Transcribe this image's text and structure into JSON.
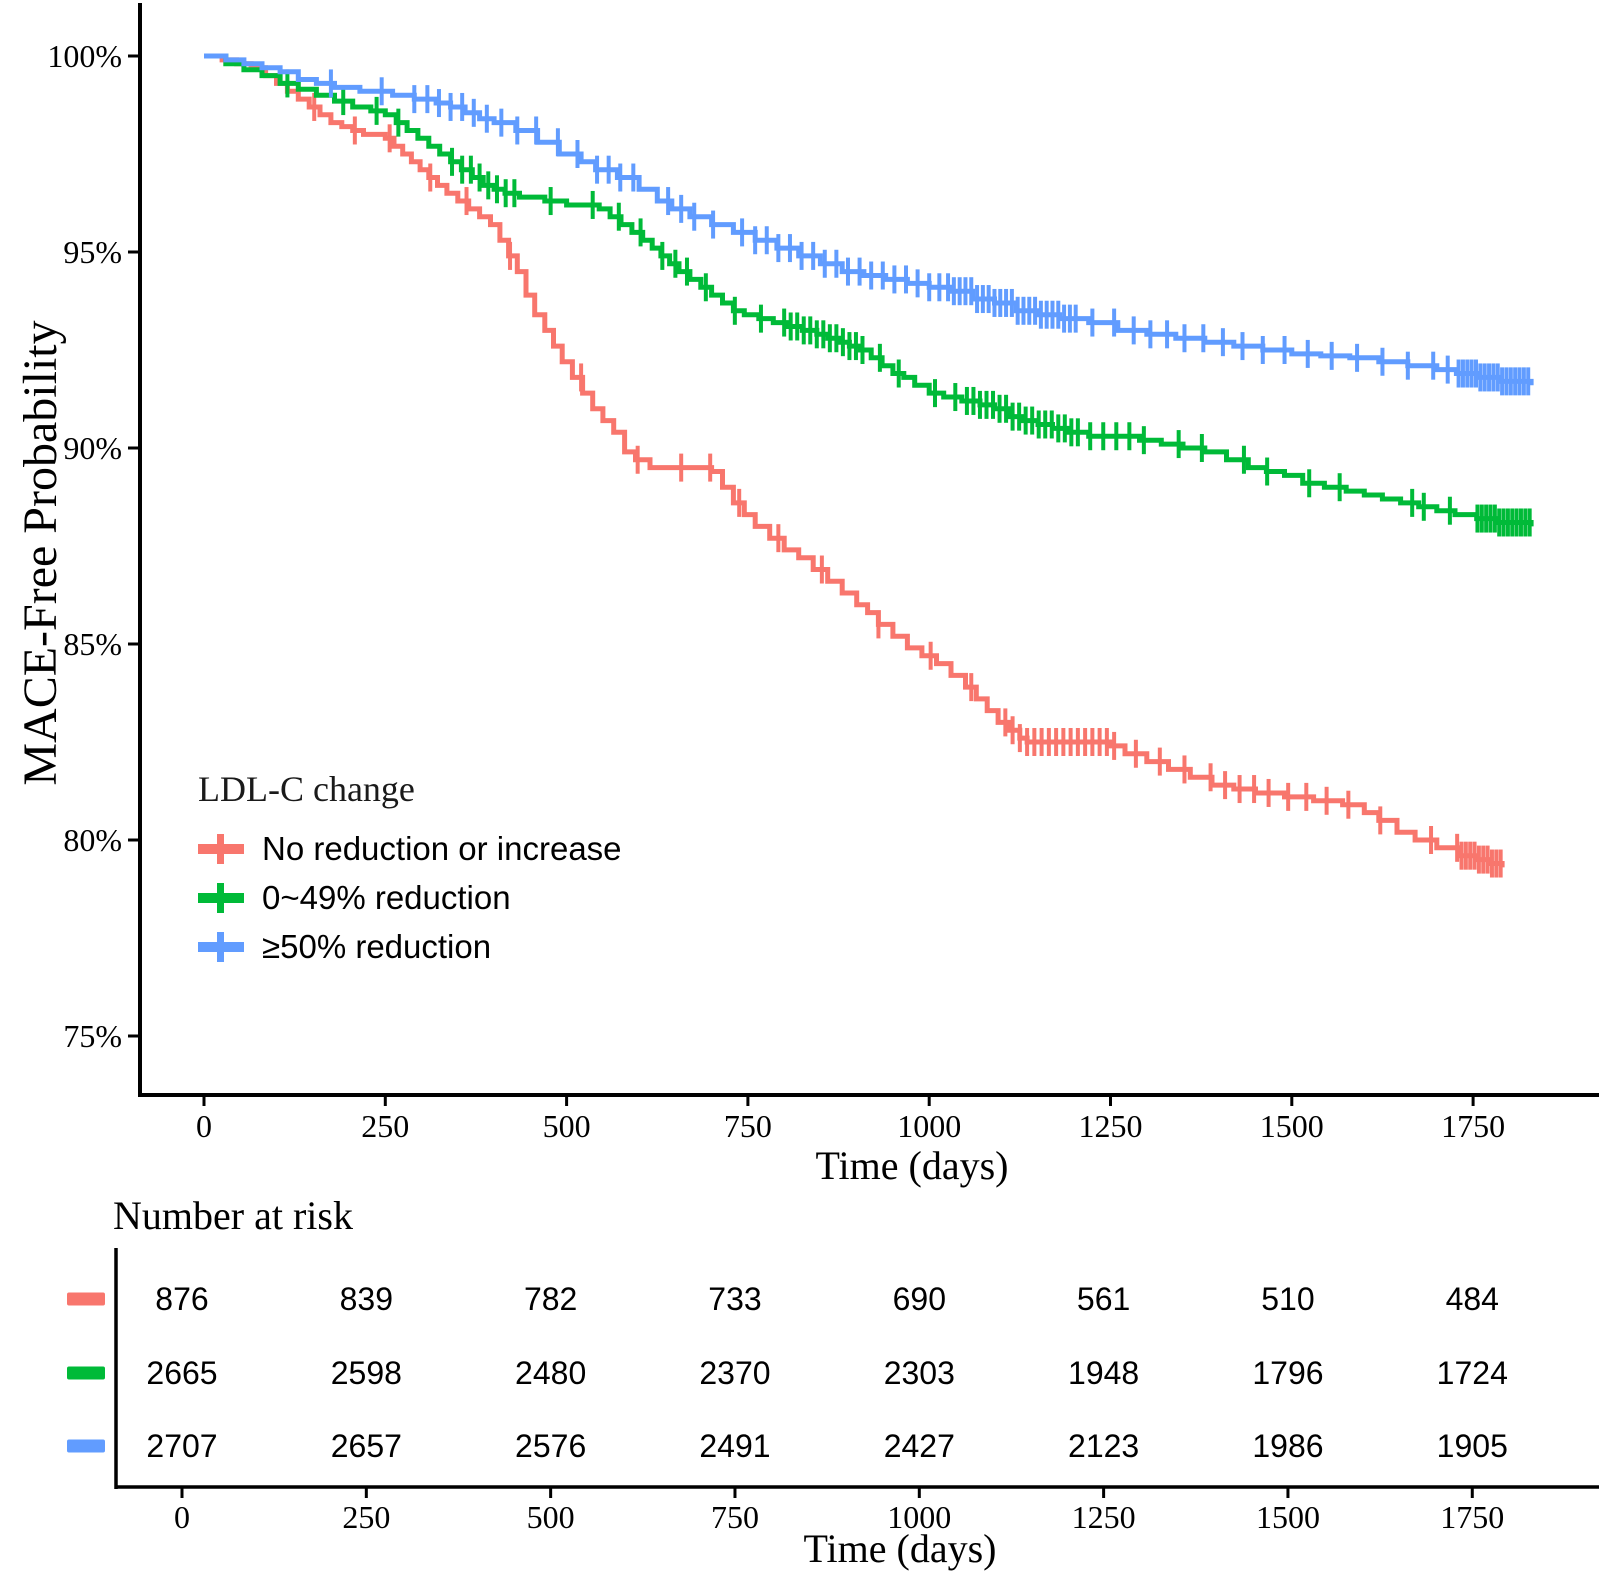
{
  "chart_data": {
    "type": "line",
    "subtype": "kaplan-meier-step-survival",
    "title": "",
    "ylabel": "MACE-Free Probability",
    "xlabel": "Time (days)",
    "x_ticks": [
      0,
      250,
      500,
      750,
      1000,
      1250,
      1500,
      1750
    ],
    "y_ticks": [
      {
        "value": 100,
        "label": "100%"
      },
      {
        "value": 95,
        "label": "95%"
      },
      {
        "value": 90,
        "label": "90%"
      },
      {
        "value": 85,
        "label": "85%"
      },
      {
        "value": 80,
        "label": "80%"
      },
      {
        "value": 75,
        "label": "75%"
      }
    ],
    "xlim": [
      0,
      1830
    ],
    "ylim_pct": [
      73.5,
      101
    ],
    "grid": false,
    "legend": {
      "title": "LDL-C change",
      "position": "inside-left"
    },
    "series": [
      {
        "name": "No reduction or increase",
        "color": "#F8766D",
        "points": [
          [
            0,
            100
          ],
          [
            25,
            99.9
          ],
          [
            45,
            99.8
          ],
          [
            65,
            99.7
          ],
          [
            85,
            99.5
          ],
          [
            100,
            99.3
          ],
          [
            115,
            99.1
          ],
          [
            130,
            98.9
          ],
          [
            145,
            98.7
          ],
          [
            160,
            98.5
          ],
          [
            175,
            98.3
          ],
          [
            190,
            98.2
          ],
          [
            205,
            98.1
          ],
          [
            220,
            98.0
          ],
          [
            250,
            97.9
          ],
          [
            262,
            97.7
          ],
          [
            274,
            97.5
          ],
          [
            286,
            97.3
          ],
          [
            298,
            97.1
          ],
          [
            310,
            96.9
          ],
          [
            322,
            96.7
          ],
          [
            335,
            96.5
          ],
          [
            350,
            96.3
          ],
          [
            365,
            96.1
          ],
          [
            380,
            95.9
          ],
          [
            395,
            95.7
          ],
          [
            408,
            95.3
          ],
          [
            420,
            94.9
          ],
          [
            432,
            94.5
          ],
          [
            444,
            93.9
          ],
          [
            456,
            93.4
          ],
          [
            470,
            93.0
          ],
          [
            482,
            92.6
          ],
          [
            494,
            92.2
          ],
          [
            508,
            91.8
          ],
          [
            522,
            91.4
          ],
          [
            536,
            91.0
          ],
          [
            550,
            90.7
          ],
          [
            565,
            90.4
          ],
          [
            580,
            89.9
          ],
          [
            595,
            89.7
          ],
          [
            615,
            89.5
          ],
          [
            700,
            89.4
          ],
          [
            715,
            89.0
          ],
          [
            730,
            88.6
          ],
          [
            745,
            88.3
          ],
          [
            760,
            88.0
          ],
          [
            780,
            87.7
          ],
          [
            800,
            87.4
          ],
          [
            820,
            87.2
          ],
          [
            840,
            86.9
          ],
          [
            860,
            86.6
          ],
          [
            880,
            86.3
          ],
          [
            900,
            86.0
          ],
          [
            915,
            85.8
          ],
          [
            930,
            85.5
          ],
          [
            950,
            85.2
          ],
          [
            970,
            84.9
          ],
          [
            990,
            84.7
          ],
          [
            1010,
            84.5
          ],
          [
            1030,
            84.2
          ],
          [
            1050,
            83.9
          ],
          [
            1065,
            83.6
          ],
          [
            1080,
            83.3
          ],
          [
            1095,
            83.0
          ],
          [
            1110,
            82.8
          ],
          [
            1125,
            82.6
          ],
          [
            1135,
            82.5
          ],
          [
            1250,
            82.4
          ],
          [
            1270,
            82.2
          ],
          [
            1300,
            82.0
          ],
          [
            1330,
            81.8
          ],
          [
            1360,
            81.6
          ],
          [
            1390,
            81.4
          ],
          [
            1420,
            81.3
          ],
          [
            1450,
            81.2
          ],
          [
            1490,
            81.1
          ],
          [
            1530,
            81.0
          ],
          [
            1570,
            80.9
          ],
          [
            1600,
            80.7
          ],
          [
            1620,
            80.5
          ],
          [
            1645,
            80.2
          ],
          [
            1670,
            80.0
          ],
          [
            1700,
            79.8
          ],
          [
            1730,
            79.6
          ],
          [
            1755,
            79.5
          ],
          [
            1775,
            79.4
          ],
          [
            1790,
            79.3
          ]
        ],
        "censor_days": [
          152,
          208,
          256,
          312,
          362,
          422,
          520,
          598,
          658,
          698,
          738,
          792,
          852,
          930,
          1002,
          1058,
          1105,
          1115,
          1125,
          1135,
          1145,
          1155,
          1165,
          1175,
          1185,
          1195,
          1205,
          1215,
          1225,
          1235,
          1245,
          1255,
          1285,
          1318,
          1352,
          1388,
          1408,
          1428,
          1448,
          1468,
          1495,
          1520,
          1548,
          1578,
          1622,
          1692,
          1728,
          1734,
          1740,
          1746,
          1752,
          1758,
          1764,
          1770,
          1776,
          1782,
          1788
        ]
      },
      {
        "name": "0~49% reduction",
        "color": "#00BA38",
        "points": [
          [
            0,
            100
          ],
          [
            30,
            99.8
          ],
          [
            55,
            99.65
          ],
          [
            80,
            99.5
          ],
          [
            105,
            99.3
          ],
          [
            130,
            99.15
          ],
          [
            155,
            99.0
          ],
          [
            180,
            98.85
          ],
          [
            205,
            98.7
          ],
          [
            230,
            98.6
          ],
          [
            250,
            98.5
          ],
          [
            265,
            98.3
          ],
          [
            280,
            98.1
          ],
          [
            295,
            97.9
          ],
          [
            310,
            97.7
          ],
          [
            325,
            97.5
          ],
          [
            340,
            97.3
          ],
          [
            355,
            97.1
          ],
          [
            370,
            96.9
          ],
          [
            385,
            96.7
          ],
          [
            400,
            96.6
          ],
          [
            415,
            96.5
          ],
          [
            435,
            96.4
          ],
          [
            470,
            96.3
          ],
          [
            500,
            96.2
          ],
          [
            545,
            96.1
          ],
          [
            560,
            95.9
          ],
          [
            575,
            95.7
          ],
          [
            590,
            95.5
          ],
          [
            605,
            95.3
          ],
          [
            618,
            95.1
          ],
          [
            630,
            94.9
          ],
          [
            642,
            94.7
          ],
          [
            655,
            94.5
          ],
          [
            670,
            94.3
          ],
          [
            685,
            94.1
          ],
          [
            700,
            93.9
          ],
          [
            715,
            93.7
          ],
          [
            730,
            93.5
          ],
          [
            745,
            93.4
          ],
          [
            765,
            93.3
          ],
          [
            785,
            93.2
          ],
          [
            805,
            93.1
          ],
          [
            825,
            93.0
          ],
          [
            845,
            92.9
          ],
          [
            860,
            92.8
          ],
          [
            875,
            92.7
          ],
          [
            890,
            92.6
          ],
          [
            905,
            92.5
          ],
          [
            920,
            92.3
          ],
          [
            935,
            92.1
          ],
          [
            950,
            91.9
          ],
          [
            965,
            91.8
          ],
          [
            980,
            91.6
          ],
          [
            1000,
            91.4
          ],
          [
            1020,
            91.3
          ],
          [
            1045,
            91.2
          ],
          [
            1070,
            91.1
          ],
          [
            1090,
            91.0
          ],
          [
            1110,
            90.8
          ],
          [
            1130,
            90.7
          ],
          [
            1150,
            90.6
          ],
          [
            1170,
            90.5
          ],
          [
            1190,
            90.4
          ],
          [
            1220,
            90.3
          ],
          [
            1290,
            90.2
          ],
          [
            1320,
            90.1
          ],
          [
            1350,
            90.0
          ],
          [
            1380,
            89.9
          ],
          [
            1410,
            89.7
          ],
          [
            1440,
            89.5
          ],
          [
            1465,
            89.4
          ],
          [
            1490,
            89.3
          ],
          [
            1515,
            89.1
          ],
          [
            1545,
            89.0
          ],
          [
            1575,
            88.9
          ],
          [
            1600,
            88.8
          ],
          [
            1625,
            88.7
          ],
          [
            1650,
            88.6
          ],
          [
            1675,
            88.5
          ],
          [
            1700,
            88.4
          ],
          [
            1725,
            88.3
          ],
          [
            1755,
            88.2
          ],
          [
            1785,
            88.1
          ],
          [
            1830,
            88.0
          ]
        ],
        "censor_days": [
          115,
          192,
          238,
          268,
          342,
          356,
          368,
          380,
          392,
          404,
          416,
          428,
          478,
          536,
          572,
          602,
          632,
          650,
          666,
          692,
          732,
          768,
          800,
          809,
          818,
          827,
          836,
          845,
          854,
          863,
          872,
          881,
          890,
          899,
          908,
          932,
          958,
          1008,
          1036,
          1052,
          1061,
          1070,
          1079,
          1088,
          1097,
          1106,
          1115,
          1124,
          1133,
          1142,
          1151,
          1160,
          1169,
          1178,
          1187,
          1196,
          1205,
          1222,
          1240,
          1258,
          1276,
          1296,
          1344,
          1376,
          1434,
          1466,
          1524,
          1566,
          1666,
          1682,
          1718,
          1756,
          1762,
          1768,
          1774,
          1780,
          1786,
          1792,
          1798,
          1804,
          1810,
          1816,
          1822,
          1828
        ]
      },
      {
        "name": "≥50% reduction",
        "color": "#619CFF",
        "points": [
          [
            0,
            100
          ],
          [
            30,
            99.9
          ],
          [
            55,
            99.8
          ],
          [
            80,
            99.7
          ],
          [
            105,
            99.6
          ],
          [
            130,
            99.4
          ],
          [
            155,
            99.3
          ],
          [
            180,
            99.2
          ],
          [
            215,
            99.1
          ],
          [
            260,
            99.0
          ],
          [
            290,
            98.9
          ],
          [
            320,
            98.8
          ],
          [
            340,
            98.7
          ],
          [
            360,
            98.55
          ],
          [
            380,
            98.4
          ],
          [
            400,
            98.3
          ],
          [
            430,
            98.1
          ],
          [
            460,
            97.8
          ],
          [
            490,
            97.5
          ],
          [
            520,
            97.3
          ],
          [
            540,
            97.1
          ],
          [
            570,
            96.9
          ],
          [
            600,
            96.6
          ],
          [
            625,
            96.3
          ],
          [
            645,
            96.1
          ],
          [
            670,
            95.9
          ],
          [
            700,
            95.7
          ],
          [
            730,
            95.5
          ],
          [
            760,
            95.3
          ],
          [
            790,
            95.1
          ],
          [
            820,
            94.9
          ],
          [
            850,
            94.7
          ],
          [
            880,
            94.5
          ],
          [
            910,
            94.4
          ],
          [
            940,
            94.3
          ],
          [
            970,
            94.2
          ],
          [
            1000,
            94.1
          ],
          [
            1030,
            94.0
          ],
          [
            1060,
            93.8
          ],
          [
            1090,
            93.7
          ],
          [
            1120,
            93.5
          ],
          [
            1150,
            93.4
          ],
          [
            1180,
            93.3
          ],
          [
            1220,
            93.2
          ],
          [
            1260,
            93.0
          ],
          [
            1300,
            92.9
          ],
          [
            1340,
            92.8
          ],
          [
            1380,
            92.7
          ],
          [
            1420,
            92.6
          ],
          [
            1460,
            92.5
          ],
          [
            1500,
            92.4
          ],
          [
            1540,
            92.35
          ],
          [
            1580,
            92.3
          ],
          [
            1620,
            92.2
          ],
          [
            1660,
            92.1
          ],
          [
            1700,
            92.0
          ],
          [
            1727,
            91.9
          ],
          [
            1755,
            91.8
          ],
          [
            1785,
            91.7
          ],
          [
            1830,
            91.6
          ]
        ],
        "censor_days": [
          175,
          245,
          290,
          308,
          324,
          340,
          356,
          372,
          390,
          410,
          432,
          458,
          488,
          515,
          542,
          558,
          574,
          592,
          640,
          658,
          676,
          702,
          742,
          760,
          776,
          792,
          808,
          824,
          840,
          856,
          872,
          888,
          904,
          920,
          936,
          952,
          968,
          984,
          1000,
          1014,
          1026,
          1034,
          1042,
          1050,
          1058,
          1066,
          1074,
          1082,
          1090,
          1098,
          1106,
          1114,
          1122,
          1130,
          1138,
          1146,
          1154,
          1162,
          1170,
          1178,
          1186,
          1194,
          1202,
          1225,
          1255,
          1282,
          1305,
          1328,
          1352,
          1378,
          1405,
          1432,
          1460,
          1490,
          1522,
          1555,
          1590,
          1625,
          1660,
          1695,
          1715,
          1730,
          1736,
          1742,
          1748,
          1754,
          1760,
          1766,
          1772,
          1778,
          1784,
          1790,
          1796,
          1802,
          1808,
          1814,
          1820,
          1826
        ]
      }
    ],
    "risk_table": {
      "title": "Number at risk",
      "xlabel": "Time (days)",
      "x_ticks": [
        0,
        250,
        500,
        750,
        1000,
        1250,
        1500,
        1750
      ],
      "rows": [
        {
          "group": "No reduction or increase",
          "color": "#F8766D",
          "counts": [
            876,
            839,
            782,
            733,
            690,
            561,
            510,
            484
          ]
        },
        {
          "group": "0~49% reduction",
          "color": "#00BA38",
          "counts": [
            2665,
            2598,
            2480,
            2370,
            2303,
            1948,
            1796,
            1724
          ]
        },
        {
          "group": "≥50% reduction",
          "color": "#619CFF",
          "counts": [
            2707,
            2657,
            2576,
            2491,
            2427,
            2123,
            1986,
            1905
          ]
        }
      ]
    }
  }
}
